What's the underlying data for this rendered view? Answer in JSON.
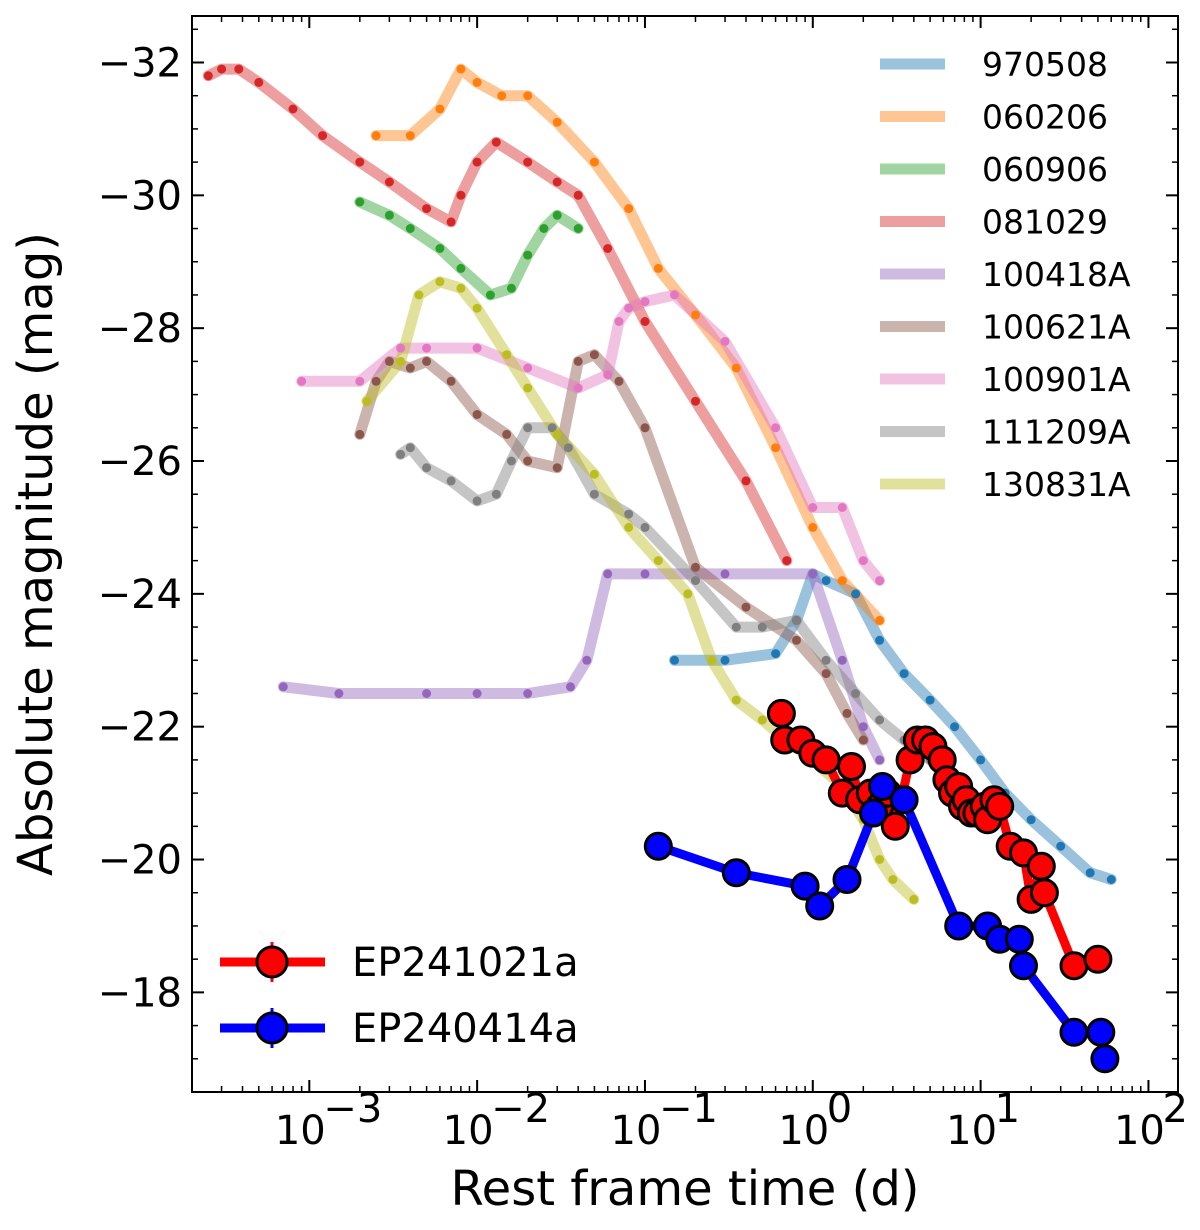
{
  "chart_data": {
    "type": "line",
    "title": "",
    "xlabel": "Rest frame time (d)",
    "ylabel": "Absolute magnitude (mag)",
    "x_scale": "log",
    "xlim": [
      0.0002,
      150
    ],
    "ylim": [
      -16.5,
      -32.7
    ],
    "y_inverted": true,
    "x_ticks": [
      {
        "value": 0.001,
        "base": "10",
        "exp": "−3"
      },
      {
        "value": 0.01,
        "base": "10",
        "exp": "−2"
      },
      {
        "value": 0.1,
        "base": "10",
        "exp": "−1"
      },
      {
        "value": 1,
        "base": "10",
        "exp": "0"
      },
      {
        "value": 10,
        "base": "10",
        "exp": "1"
      },
      {
        "value": 100,
        "base": "10",
        "exp": "2"
      }
    ],
    "y_ticks": [
      {
        "value": -32,
        "label": "−32"
      },
      {
        "value": -30,
        "label": "−30"
      },
      {
        "value": -28,
        "label": "−28"
      },
      {
        "value": -26,
        "label": "−26"
      },
      {
        "value": -24,
        "label": "−24"
      },
      {
        "value": -22,
        "label": "−22"
      },
      {
        "value": -20,
        "label": "−20"
      },
      {
        "value": -18,
        "label": "−18"
      }
    ],
    "legend_position": "top-right",
    "series": [
      {
        "name": "970508",
        "color": "#1f77b4",
        "x": [
          0.15,
          0.3,
          0.6,
          0.8,
          1.0,
          1.2,
          1.8,
          2.5,
          3.5,
          5,
          7,
          10,
          14,
          20,
          30,
          45,
          60
        ],
        "y": [
          -23.0,
          -23.0,
          -23.1,
          -23.6,
          -24.3,
          -24.2,
          -24.0,
          -23.3,
          -22.8,
          -22.4,
          -22.0,
          -21.5,
          -21.0,
          -20.6,
          -20.2,
          -19.8,
          -19.7
        ]
      },
      {
        "name": "060206",
        "color": "#ff7f0e",
        "x": [
          0.0025,
          0.004,
          0.006,
          0.008,
          0.01,
          0.014,
          0.02,
          0.03,
          0.05,
          0.08,
          0.12,
          0.2,
          0.35,
          0.6,
          1.0,
          1.5,
          2.5
        ],
        "y": [
          -30.9,
          -30.9,
          -31.3,
          -31.9,
          -31.7,
          -31.5,
          -31.5,
          -31.1,
          -30.5,
          -29.8,
          -28.9,
          -28.2,
          -27.4,
          -26.2,
          -25.0,
          -24.2,
          -23.6
        ]
      },
      {
        "name": "060906",
        "color": "#2ca02c",
        "x": [
          0.002,
          0.003,
          0.004,
          0.006,
          0.008,
          0.012,
          0.016,
          0.02,
          0.025,
          0.03,
          0.04
        ],
        "y": [
          -29.9,
          -29.7,
          -29.5,
          -29.2,
          -28.9,
          -28.5,
          -28.6,
          -29.1,
          -29.5,
          -29.7,
          -29.5
        ]
      },
      {
        "name": "081029",
        "color": "#d62728",
        "x": [
          0.00025,
          0.0003,
          0.00038,
          0.0005,
          0.0008,
          0.0012,
          0.002,
          0.003,
          0.005,
          0.007,
          0.008,
          0.01,
          0.013,
          0.02,
          0.03,
          0.04,
          0.06,
          0.1,
          0.2,
          0.4,
          0.7
        ],
        "y": [
          -31.8,
          -31.9,
          -31.9,
          -31.7,
          -31.3,
          -30.9,
          -30.5,
          -30.2,
          -29.8,
          -29.6,
          -30.0,
          -30.5,
          -30.8,
          -30.5,
          -30.2,
          -30.0,
          -29.2,
          -28.1,
          -26.9,
          -25.7,
          -24.5
        ]
      },
      {
        "name": "100418A",
        "color": "#9467bd",
        "x": [
          0.0007,
          0.0015,
          0.005,
          0.01,
          0.02,
          0.036,
          0.045,
          0.06,
          0.1,
          0.3,
          1.0,
          1.5,
          2.0,
          2.5
        ],
        "y": [
          -22.6,
          -22.5,
          -22.5,
          -22.5,
          -22.5,
          -22.6,
          -23.0,
          -24.3,
          -24.3,
          -24.3,
          -24.3,
          -23.0,
          -22.0,
          -21.5
        ]
      },
      {
        "name": "100621A",
        "color": "#8c564b",
        "x": [
          0.002,
          0.0025,
          0.003,
          0.004,
          0.005,
          0.007,
          0.01,
          0.015,
          0.02,
          0.03,
          0.04,
          0.05,
          0.07,
          0.1,
          0.2,
          0.4,
          0.8,
          1.2,
          1.6,
          2.0
        ],
        "y": [
          -26.4,
          -27.2,
          -27.5,
          -27.4,
          -27.5,
          -27.2,
          -26.7,
          -26.4,
          -26.0,
          -25.9,
          -27.5,
          -27.6,
          -27.2,
          -26.5,
          -24.4,
          -23.8,
          -23.3,
          -22.8,
          -22.2,
          -21.8
        ]
      },
      {
        "name": "100901A",
        "color": "#e377c2",
        "x": [
          0.0009,
          0.002,
          0.0035,
          0.005,
          0.01,
          0.02,
          0.04,
          0.06,
          0.07,
          0.08,
          0.1,
          0.15,
          0.3,
          0.6,
          1.0,
          1.5,
          2.0,
          2.5
        ],
        "y": [
          -27.2,
          -27.2,
          -27.7,
          -27.7,
          -27.7,
          -27.4,
          -27.1,
          -27.3,
          -28.1,
          -28.3,
          -28.4,
          -28.5,
          -27.8,
          -26.5,
          -25.3,
          -25.3,
          -24.5,
          -24.2
        ]
      },
      {
        "name": "111209A",
        "color": "#7f7f7f",
        "x": [
          0.0035,
          0.004,
          0.005,
          0.007,
          0.01,
          0.013,
          0.016,
          0.02,
          0.028,
          0.035,
          0.05,
          0.08,
          0.1,
          0.2,
          0.35,
          0.5,
          0.8,
          1.2,
          1.8,
          2.5,
          3.5,
          5.0
        ],
        "y": [
          -26.1,
          -26.2,
          -25.9,
          -25.7,
          -25.4,
          -25.5,
          -26.0,
          -26.5,
          -26.5,
          -26.2,
          -25.5,
          -25.2,
          -25.0,
          -24.2,
          -23.5,
          -23.5,
          -23.6,
          -23.0,
          -22.5,
          -22.1,
          -21.8,
          -21.5
        ]
      },
      {
        "name": "130831A",
        "color": "#bcbd22",
        "x": [
          0.0022,
          0.0035,
          0.0045,
          0.006,
          0.008,
          0.01,
          0.015,
          0.02,
          0.03,
          0.05,
          0.08,
          0.12,
          0.18,
          0.25,
          0.35,
          0.5,
          0.7,
          1.0,
          1.5,
          2.0,
          2.5,
          3.0,
          4.0
        ],
        "y": [
          -26.9,
          -27.5,
          -28.5,
          -28.7,
          -28.6,
          -28.3,
          -27.6,
          -27.1,
          -26.4,
          -25.8,
          -25.0,
          -24.5,
          -24.0,
          -23.0,
          -22.4,
          -22.1,
          -21.8,
          -21.5,
          -21.1,
          -20.6,
          -20.0,
          -19.7,
          -19.4
        ]
      },
      {
        "name": "EP241021a",
        "color": "#ff0000",
        "highlight": true,
        "x": [
          0.65,
          0.68,
          0.85,
          1.0,
          1.2,
          1.5,
          1.7,
          1.9,
          2.2,
          2.5,
          2.8,
          3.1,
          3.8,
          4.2,
          4.7,
          5.2,
          5.9,
          6.3,
          6.8,
          7.4,
          7.8,
          8.2,
          8.8,
          9.5,
          10.5,
          11,
          12,
          13,
          15,
          18,
          20,
          23,
          24,
          36,
          50
        ],
        "y": [
          -22.2,
          -21.8,
          -21.8,
          -21.6,
          -21.5,
          -21.0,
          -21.4,
          -20.9,
          -21.0,
          -20.8,
          -21.0,
          -20.5,
          -21.5,
          -21.8,
          -21.8,
          -21.7,
          -21.5,
          -21.2,
          -21.0,
          -21.1,
          -20.8,
          -20.9,
          -20.7,
          -20.7,
          -20.8,
          -20.6,
          -20.9,
          -20.8,
          -20.2,
          -20.1,
          -19.4,
          -19.9,
          -19.5,
          -18.4,
          -18.5
        ]
      },
      {
        "name": "EP240414a",
        "color": "#0000ff",
        "highlight": true,
        "x": [
          0.12,
          0.35,
          0.9,
          1.1,
          1.6,
          2.3,
          2.6,
          3.5,
          7.4,
          11,
          13,
          17,
          18,
          36,
          52,
          55
        ],
        "y": [
          -20.2,
          -19.8,
          -19.6,
          -19.3,
          -19.7,
          -20.7,
          -21.1,
          -20.9,
          -19.0,
          -19.0,
          -18.8,
          -18.8,
          -18.4,
          -17.4,
          -17.4,
          -17.0
        ]
      }
    ]
  }
}
